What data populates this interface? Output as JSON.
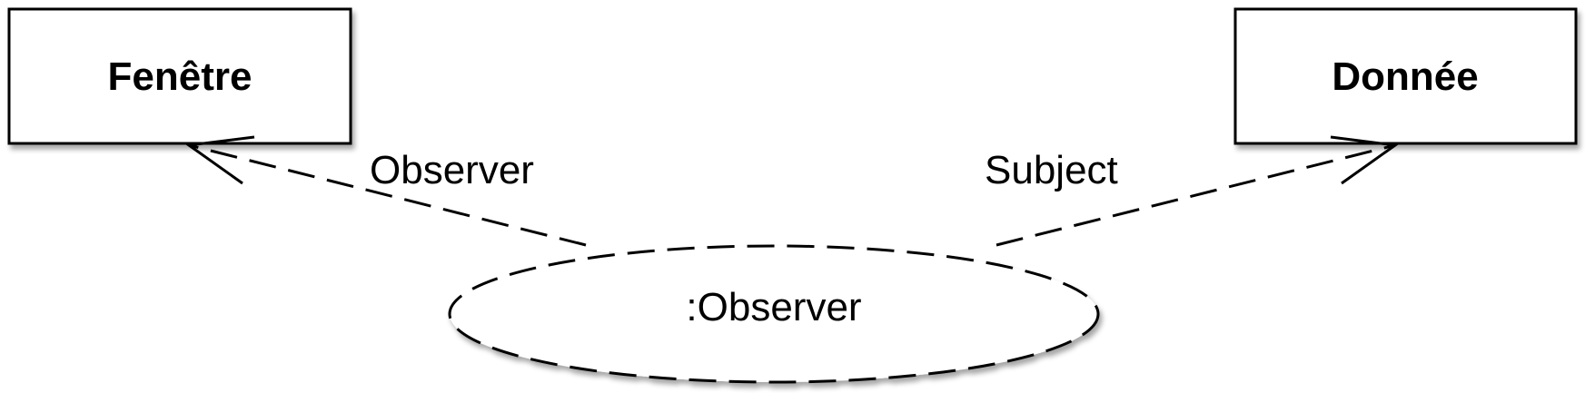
{
  "diagram": {
    "classes": [
      {
        "name": "Fenêtre"
      },
      {
        "name": "Donnée"
      }
    ],
    "collaboration": {
      "name": ":Observer"
    },
    "roles": [
      {
        "label": "Observer"
      },
      {
        "label": "Subject"
      }
    ]
  }
}
